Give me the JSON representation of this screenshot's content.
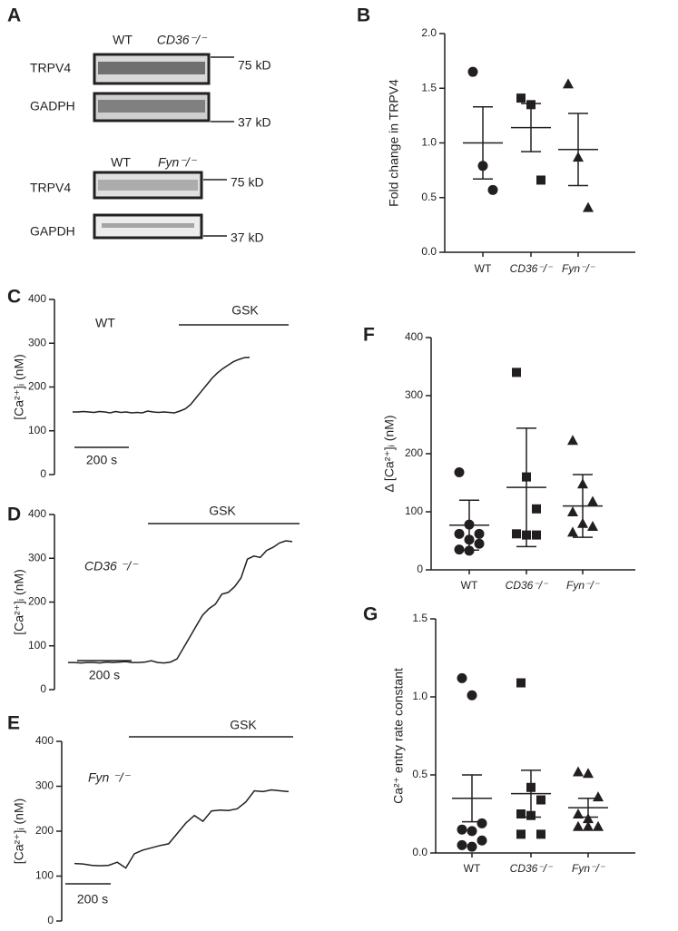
{
  "blot": {
    "label": "A",
    "panels": [
      {
        "columns": [
          "WT",
          "CD36⁻/⁻"
        ],
        "rows": [
          {
            "protein": "TRPV4",
            "marker": "75 kD"
          },
          {
            "protein": "GADPH",
            "marker": "37 kD"
          }
        ]
      },
      {
        "columns": [
          "WT",
          "Fyn⁻/⁻"
        ],
        "rows": [
          {
            "protein": "TRPV4",
            "marker": "75 kD"
          },
          {
            "protein": "GAPDH",
            "marker": "37 kD"
          }
        ]
      }
    ]
  },
  "chart_data": [
    {
      "type": "dotplot",
      "label": "B",
      "ylabel": "Fold change in TRPV4",
      "color": "#231f20",
      "categories": [
        "WT",
        "CD36⁻/⁻",
        "Fyn⁻/⁻"
      ],
      "groups": [
        {
          "marker": "circle",
          "values": [
            1.65,
            0.79,
            0.57
          ],
          "mean": 1.0,
          "error": 0.33
        },
        {
          "marker": "square",
          "values": [
            1.41,
            1.35,
            0.66
          ],
          "mean": 1.14,
          "error": 0.22
        },
        {
          "marker": "triangle",
          "values": [
            1.54,
            0.87,
            0.41
          ],
          "mean": 0.94,
          "error": 0.33
        }
      ],
      "ylim": [
        0,
        2
      ],
      "yticks": [
        {
          "value": 0,
          "label": "0.0"
        },
        {
          "value": 0.5,
          "label": "0.5"
        },
        {
          "value": 1,
          "label": "1.0"
        },
        {
          "value": 1.5,
          "label": "1.5"
        },
        {
          "value": 2,
          "label": "2.0"
        }
      ]
    },
    {
      "type": "line",
      "label": "C",
      "ylabel": "[Ca²⁺]ᵢ (nM)",
      "condition": "WT",
      "stimulus": "GSK",
      "scale_bar": "200 s",
      "color": "#231f20",
      "values": [
        143,
        143,
        144,
        143,
        142,
        144,
        143,
        141,
        144,
        142,
        143,
        141,
        142,
        141,
        145,
        143,
        142,
        143,
        142,
        141,
        145,
        150,
        160,
        175,
        190,
        205,
        220,
        232,
        242,
        250,
        258,
        263,
        267,
        268
      ],
      "ylim": [
        0,
        400
      ],
      "yticks": [
        0,
        100,
        200,
        300,
        400
      ]
    },
    {
      "type": "line",
      "label": "D",
      "ylabel": "[Ca²⁺]ᵢ (nM)",
      "condition": "CD36 ⁻/⁻",
      "stimulus": "GSK",
      "scale_bar": "200 s",
      "color": "#231f20",
      "values": [
        62,
        62,
        61,
        62,
        62,
        61,
        63,
        62,
        63,
        64,
        62,
        62,
        63,
        66,
        62,
        61,
        63,
        70,
        95,
        120,
        145,
        170,
        185,
        195,
        218,
        222,
        235,
        255,
        298,
        305,
        302,
        318,
        325,
        335,
        340,
        338
      ],
      "ylim": [
        0,
        400
      ],
      "yticks": [
        0,
        100,
        200,
        300,
        400
      ]
    },
    {
      "type": "line",
      "label": "E",
      "ylabel": "[Ca²⁺]ᵢ (nM)",
      "condition": "Fyn ⁻/⁻",
      "stimulus": "GSK",
      "scale_bar": "200 s",
      "color": "#231f20",
      "values": [
        128,
        127,
        124,
        123,
        124,
        131,
        118,
        150,
        158,
        163,
        168,
        172,
        195,
        218,
        235,
        222,
        245,
        247,
        246,
        250,
        265,
        290,
        288,
        292,
        290,
        288
      ],
      "ylim": [
        0,
        400
      ],
      "yticks": [
        0,
        100,
        200,
        300,
        400
      ]
    },
    {
      "type": "dotplot",
      "label": "F",
      "ylabel": "Δ [Ca²⁺]ᵢ (nM)",
      "color": "#231f20",
      "categories": [
        "WT",
        "CD36⁻/⁻",
        "Fyn⁻/⁻"
      ],
      "groups": [
        {
          "marker": "circle",
          "values": [
            168,
            78,
            62,
            62,
            52,
            45,
            35,
            33
          ],
          "mean": 77,
          "error": 43
        },
        {
          "marker": "square",
          "values": [
            340,
            160,
            105,
            62,
            60,
            60
          ],
          "mean": 142,
          "error": 102
        },
        {
          "marker": "triangle",
          "values": [
            223,
            148,
            118,
            100,
            80,
            75,
            65
          ],
          "mean": 110,
          "error": 54
        }
      ],
      "ylim": [
        0,
        400
      ],
      "yticks": [
        0,
        100,
        200,
        300,
        400
      ]
    },
    {
      "type": "dotplot",
      "label": "G",
      "ylabel": "Ca²⁺ entry rate constant",
      "color": "#231f20",
      "categories": [
        "WT",
        "CD36⁻/⁻",
        "Fyn⁻/⁻"
      ],
      "groups": [
        {
          "marker": "circle",
          "values": [
            1.12,
            1.01,
            0.19,
            0.15,
            0.14,
            0.08,
            0.05,
            0.04
          ],
          "mean": 0.35,
          "error": 0.15
        },
        {
          "marker": "square",
          "values": [
            1.09,
            0.42,
            0.34,
            0.25,
            0.24,
            0.12,
            0.12
          ],
          "mean": 0.38,
          "error": 0.15
        },
        {
          "marker": "triangle",
          "values": [
            0.52,
            0.51,
            0.36,
            0.25,
            0.22,
            0.17,
            0.17,
            0.17
          ],
          "mean": 0.29,
          "error": 0.06
        }
      ],
      "ylim": [
        0,
        1.5
      ],
      "yticks": [
        {
          "value": 0,
          "label": "0.0"
        },
        {
          "value": 0.5,
          "label": "0.5"
        },
        {
          "value": 1,
          "label": "1.0"
        },
        {
          "value": 1.5,
          "label": "1.5"
        }
      ]
    }
  ]
}
